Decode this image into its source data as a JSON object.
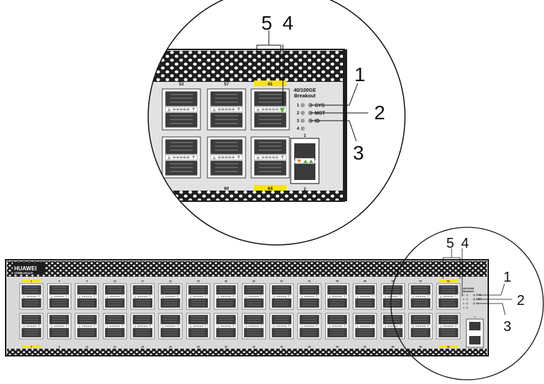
{
  "front_panel": {
    "brand": "HUAWEI",
    "model": "CE8850-64CQ-EI",
    "breakout_line1": "40/100GE",
    "breakout_line2": "Breakout",
    "indicators": [
      {
        "label": "SYS",
        "color": "#8a8a8a"
      },
      {
        "label": "MST",
        "color": "#8a8a8a"
      },
      {
        "label": "ID",
        "color": "#8a8a8a"
      }
    ],
    "breakout_indicators": [
      "1",
      "2",
      "3",
      "4"
    ],
    "port_top_labels": [
      "1",
      "5",
      "9",
      "13",
      "17",
      "21",
      "25",
      "29",
      "33",
      "37",
      "41",
      "45",
      "49",
      "53",
      "57",
      "61"
    ],
    "port_bottom_labels": [
      "4",
      "8",
      "12",
      "16",
      "20",
      "24",
      "28",
      "32",
      "36",
      "40",
      "44",
      "48",
      "52",
      "56",
      "60",
      "64"
    ],
    "aux_top_label": "1",
    "aux_bottom_label": "2",
    "highlight_color": "#f5e50a"
  },
  "zoom_view": {
    "top_labels": [
      "53",
      "57",
      "61"
    ],
    "bottom_labels": [
      "60",
      "64"
    ],
    "aux_top_label": "1",
    "aux_bottom_label": "2"
  },
  "callouts": [
    "1",
    "2",
    "3",
    "4",
    "5"
  ]
}
